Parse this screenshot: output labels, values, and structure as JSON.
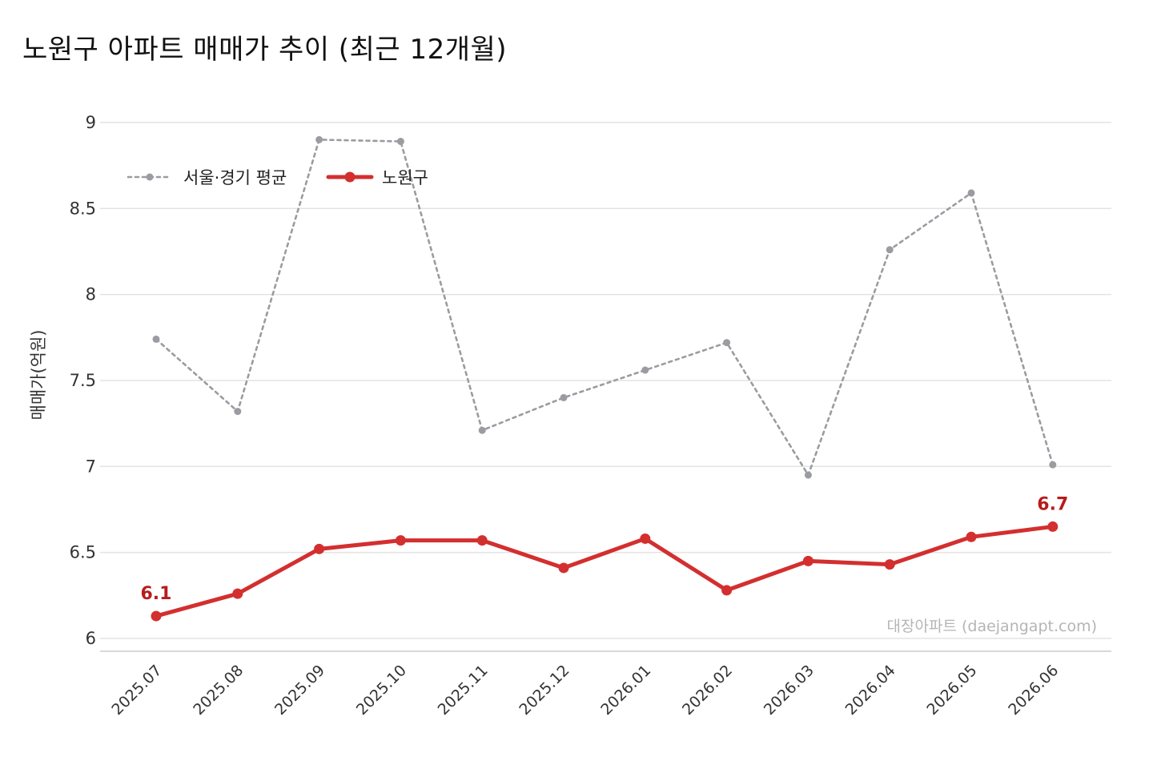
{
  "chart_data": {
    "type": "line",
    "title": "노원구 아파트 매매가 추이 (최근 12개월)",
    "xlabel": "",
    "ylabel": "매매가(억원)",
    "categories": [
      "2025.07",
      "2025.08",
      "2025.09",
      "2025.10",
      "2025.11",
      "2025.12",
      "2026.01",
      "2026.02",
      "2026.03",
      "2026.04",
      "2026.05",
      "2026.06"
    ],
    "series": [
      {
        "name": "서울·경기 평균",
        "color": "#9a9ca1",
        "style": "dotted",
        "values": [
          7.74,
          7.32,
          8.9,
          8.89,
          7.21,
          7.4,
          7.56,
          7.72,
          6.95,
          8.26,
          8.59,
          7.01
        ]
      },
      {
        "name": "노원구",
        "color": "#d32f2f",
        "style": "solid",
        "values": [
          6.13,
          6.26,
          6.52,
          6.57,
          6.57,
          6.41,
          6.58,
          6.28,
          6.45,
          6.43,
          6.59,
          6.65
        ]
      }
    ],
    "yticks": [
      "6",
      "6.5",
      "7",
      "7.5",
      "8",
      "8.5",
      "9"
    ],
    "ylim": [
      5.93,
      9.13
    ],
    "grid": true,
    "legend_position": "top-left",
    "annotations": [
      {
        "series": 1,
        "index": 0,
        "text": "6.1",
        "color": "#b71c1c"
      },
      {
        "series": 1,
        "index": 11,
        "text": "6.7",
        "color": "#b71c1c"
      }
    ],
    "watermark": "대장아파트 (daejangapt.com)"
  }
}
